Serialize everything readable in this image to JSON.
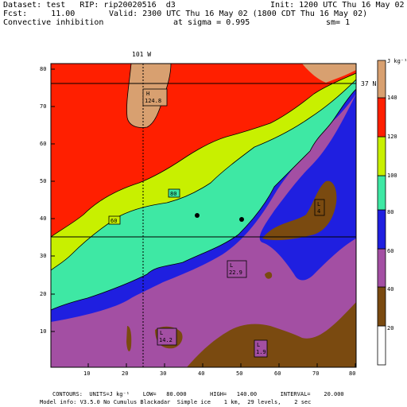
{
  "header": {
    "dataset_line": "Dataset: test   RIP: rip20020516  d3",
    "init_line": "Init: 1200 UTC Thu 16 May 02",
    "fcst_line": "Fcst:     11.00",
    "valid_line": "Valid: 2300 UTC Thu 16 May 02 (1800 CDT Thu 16 May 02)",
    "field_line": "Convective inhibition",
    "sigma_line": "at sigma = 0.995",
    "sm_line": "sm= 1"
  },
  "map": {
    "lon_label": "101 W",
    "lat_label": "37 N",
    "x_ticks": [
      "10",
      "20",
      "30",
      "40",
      "50",
      "60",
      "70",
      "80"
    ],
    "y_ticks": [
      "10",
      "20",
      "30",
      "40",
      "50",
      "60",
      "70",
      "80"
    ],
    "contour_labels": [
      "80",
      "60"
    ],
    "highs": [
      {
        "letter": "H",
        "value": "124.8"
      }
    ],
    "lows": [
      {
        "letter": "L",
        "value": "4"
      },
      {
        "letter": "L",
        "value": "22.9"
      },
      {
        "letter": "L",
        "value": "14.2"
      },
      {
        "letter": "L",
        "value": "1.9"
      }
    ]
  },
  "legend": {
    "unit_label": "J kg⁻¹",
    "levels": [
      "140",
      "120",
      "100",
      "80",
      "60",
      "40",
      "20"
    ],
    "colors": [
      "#ffffff",
      "#7a4a10",
      "#a34fa3",
      "#1f1fe0",
      "#3ee8a4",
      "#c8f000",
      "#ff1f00",
      "#d8a070"
    ]
  },
  "footer": {
    "contours_line": "CONTOURS:  UNITS=J kg⁻¹    LOW=   80.000       HIGH=   140.00       INTERVAL=    20.000",
    "model_line": "Model info: V3.5.0 No Cumulus Blackadar  Simple ice    1 km,  29 levels,    2 sec"
  }
}
